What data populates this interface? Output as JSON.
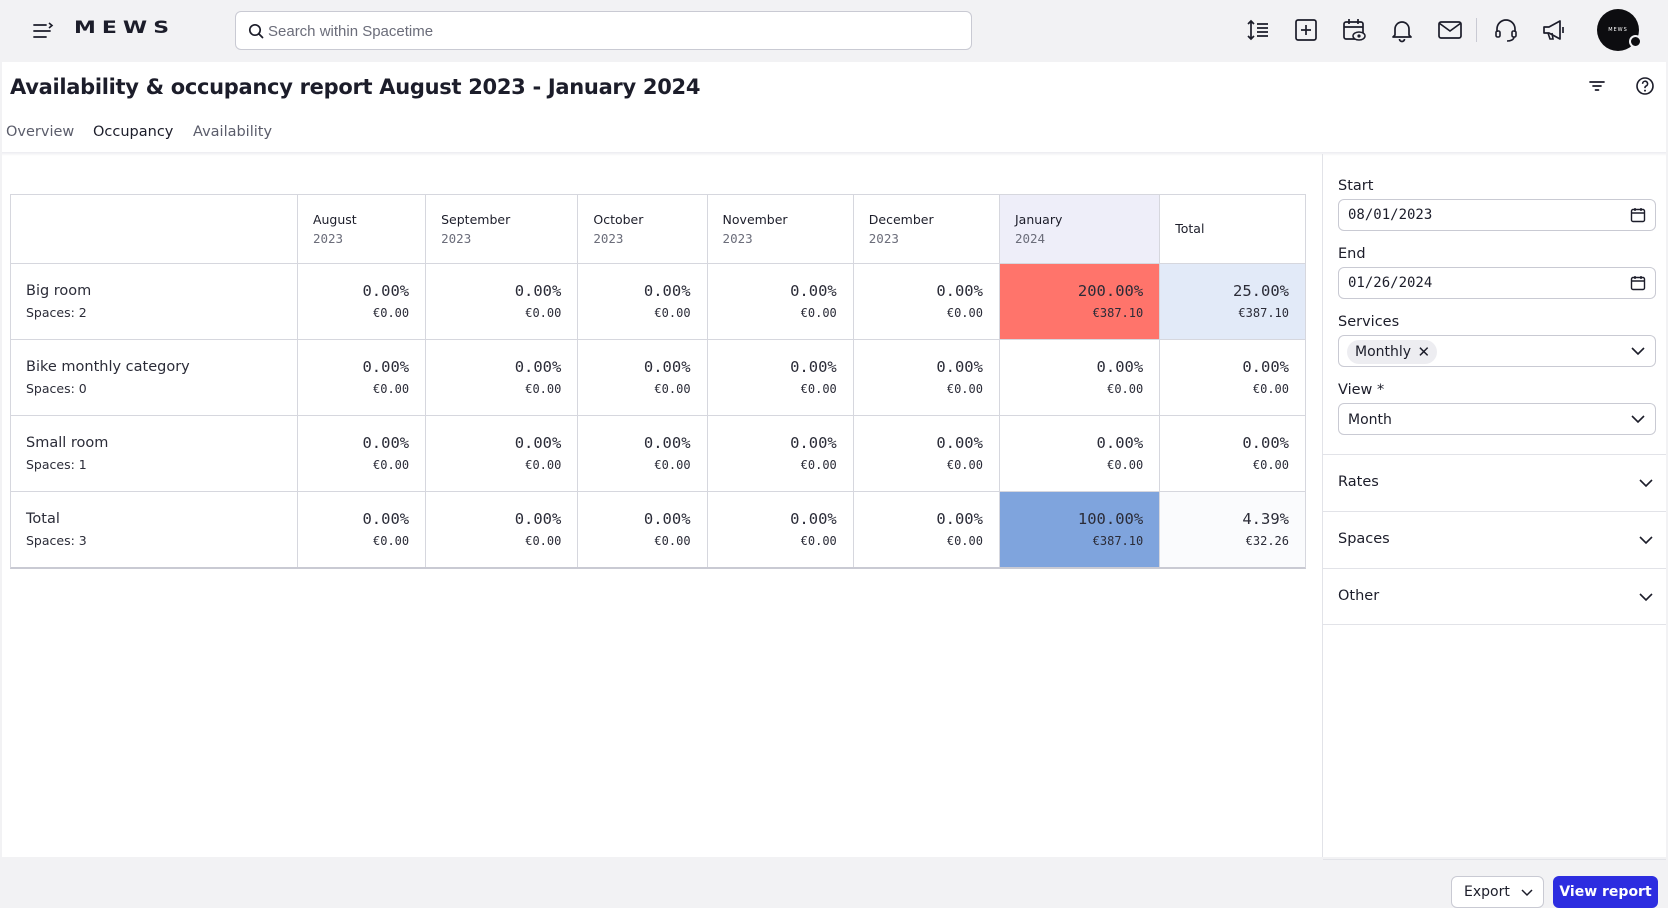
{
  "app": {
    "logo": "MEWS",
    "avatar_text": "MEWS"
  },
  "search": {
    "placeholder": "Search within Spacetime"
  },
  "toolbar_icons": [
    "menu-icon",
    "line-height-icon",
    "add-square-icon",
    "calendar-view-icon",
    "bell-icon",
    "mail-icon",
    "headset-icon",
    "megaphone-icon"
  ],
  "page": {
    "title": "Availability & occupancy report August 2023 - January 2024",
    "tabs": [
      "Overview",
      "Occupancy",
      "Availability"
    ],
    "active_tab": "Occupancy"
  },
  "table": {
    "columns": [
      {
        "month": "August",
        "year": "2023"
      },
      {
        "month": "September",
        "year": "2023"
      },
      {
        "month": "October",
        "year": "2023"
      },
      {
        "month": "November",
        "year": "2023"
      },
      {
        "month": "December",
        "year": "2023"
      },
      {
        "month": "January",
        "year": "2024"
      }
    ],
    "total_header": "Total",
    "rows": [
      {
        "name": "Big room",
        "spaces": "Spaces: 2",
        "cells": [
          {
            "pct": "0.00%",
            "eur": "€0.00"
          },
          {
            "pct": "0.00%",
            "eur": "€0.00"
          },
          {
            "pct": "0.00%",
            "eur": "€0.00"
          },
          {
            "pct": "0.00%",
            "eur": "€0.00"
          },
          {
            "pct": "0.00%",
            "eur": "€0.00"
          },
          {
            "pct": "200.00%",
            "eur": "€387.10"
          }
        ],
        "total": {
          "pct": "25.00%",
          "eur": "€387.10"
        }
      },
      {
        "name": "Bike monthly category",
        "spaces": "Spaces: 0",
        "cells": [
          {
            "pct": "0.00%",
            "eur": "€0.00"
          },
          {
            "pct": "0.00%",
            "eur": "€0.00"
          },
          {
            "pct": "0.00%",
            "eur": "€0.00"
          },
          {
            "pct": "0.00%",
            "eur": "€0.00"
          },
          {
            "pct": "0.00%",
            "eur": "€0.00"
          },
          {
            "pct": "0.00%",
            "eur": "€0.00"
          }
        ],
        "total": {
          "pct": "0.00%",
          "eur": "€0.00"
        }
      },
      {
        "name": "Small room",
        "spaces": "Spaces: 1",
        "cells": [
          {
            "pct": "0.00%",
            "eur": "€0.00"
          },
          {
            "pct": "0.00%",
            "eur": "€0.00"
          },
          {
            "pct": "0.00%",
            "eur": "€0.00"
          },
          {
            "pct": "0.00%",
            "eur": "€0.00"
          },
          {
            "pct": "0.00%",
            "eur": "€0.00"
          },
          {
            "pct": "0.00%",
            "eur": "€0.00"
          }
        ],
        "total": {
          "pct": "0.00%",
          "eur": "€0.00"
        }
      },
      {
        "name": "Total",
        "spaces": "Spaces: 3",
        "cells": [
          {
            "pct": "0.00%",
            "eur": "€0.00"
          },
          {
            "pct": "0.00%",
            "eur": "€0.00"
          },
          {
            "pct": "0.00%",
            "eur": "€0.00"
          },
          {
            "pct": "0.00%",
            "eur": "€0.00"
          },
          {
            "pct": "0.00%",
            "eur": "€0.00"
          },
          {
            "pct": "100.00%",
            "eur": "€387.10"
          }
        ],
        "total": {
          "pct": "4.39%",
          "eur": "€32.26"
        }
      }
    ],
    "colors": {
      "highlight_column": "#eeeef9",
      "over_capacity": "#ff746b",
      "total_light": "#e2eaf8",
      "total_strong": "#7fa4dd"
    }
  },
  "filters": {
    "start_label": "Start",
    "start_value": "08/01/2023",
    "end_label": "End",
    "end_value": "01/26/2024",
    "services_label": "Services",
    "services_chip": "Monthly",
    "chip_remove": "✕",
    "view_label": "View *",
    "view_value": "Month",
    "sections": [
      "Rates",
      "Spaces",
      "Other"
    ]
  },
  "footer": {
    "export_label": "Export",
    "view_report_label": "View report"
  },
  "accent_color": "#2d2de0"
}
